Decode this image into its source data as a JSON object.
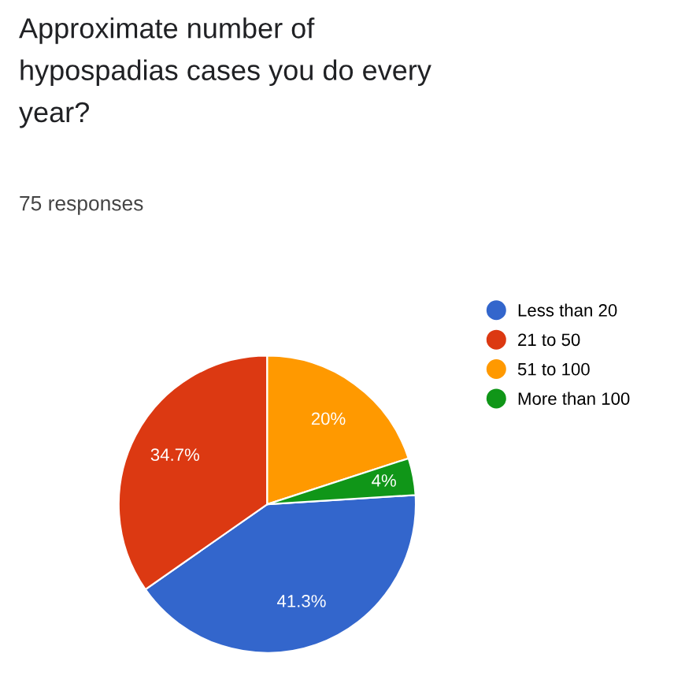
{
  "chart_data": {
    "type": "pie",
    "title": "Approximate number of\nhypospadias cases you do every\nyear?",
    "subtitle": "75 responses",
    "categories": [
      "Less than 20",
      "21 to 50",
      "51 to 100",
      "More than 100"
    ],
    "values": [
      41.3,
      34.7,
      20,
      4
    ],
    "colors": [
      "#3366cc",
      "#dc3912",
      "#ff9900",
      "#109618"
    ],
    "value_labels": [
      "41.3%",
      "34.7%",
      "20%",
      "4%"
    ],
    "legend": "right"
  }
}
